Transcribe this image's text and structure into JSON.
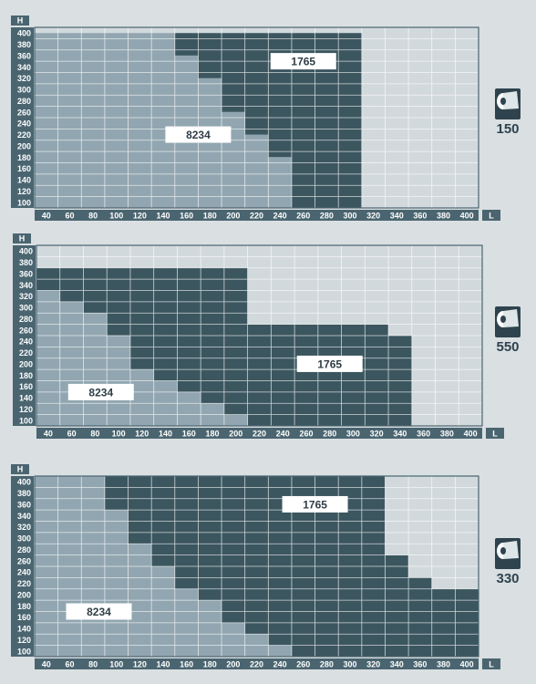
{
  "colors": {
    "outer_zone": "#d2d9dc",
    "light_zone": "#91a6b0",
    "dark_zone": "#3b565f",
    "grid_line": "#ffffff",
    "axis_bar": "#4a6570",
    "label_bg": "#ffffff",
    "label_text": "#2f3e46",
    "icon_fill": "#2e434d"
  },
  "chart_data": [
    {
      "type": "heatmap",
      "name": "150",
      "xlabel": "L",
      "ylabel": "H",
      "x_ticks": [
        40,
        60,
        80,
        100,
        120,
        140,
        160,
        180,
        200,
        220,
        240,
        260,
        280,
        300,
        320,
        340,
        360,
        380,
        400
      ],
      "y_ticks": [
        100,
        120,
        140,
        160,
        180,
        200,
        220,
        240,
        260,
        280,
        300,
        320,
        340,
        360,
        380,
        400
      ],
      "grid": true,
      "regions": [
        {
          "label": "8234",
          "boundary": [
            [
              30,
              400
            ],
            [
              150,
              400
            ],
            [
              150,
              360
            ],
            [
              170,
              360
            ],
            [
              170,
              320
            ],
            [
              190,
              320
            ],
            [
              190,
              260
            ],
            [
              210,
              260
            ],
            [
              210,
              220
            ],
            [
              230,
              220
            ],
            [
              230,
              180
            ],
            [
              250,
              180
            ],
            [
              250,
              90
            ],
            [
              30,
              90
            ]
          ]
        },
        {
          "label": "1765",
          "boundary": [
            [
              150,
              400
            ],
            [
              310,
              400
            ],
            [
              310,
              90
            ],
            [
              250,
              90
            ],
            [
              250,
              180
            ],
            [
              230,
              180
            ],
            [
              230,
              220
            ],
            [
              210,
              220
            ],
            [
              210,
              260
            ],
            [
              190,
              260
            ],
            [
              190,
              320
            ],
            [
              170,
              320
            ],
            [
              170,
              360
            ],
            [
              150,
              360
            ]
          ]
        }
      ],
      "icon": "paper-roll-icon"
    },
    {
      "type": "heatmap",
      "name": "550",
      "xlabel": "L",
      "ylabel": "H",
      "x_ticks": [
        40,
        60,
        80,
        100,
        120,
        140,
        160,
        180,
        200,
        220,
        240,
        260,
        280,
        300,
        320,
        340,
        360,
        380,
        400
      ],
      "y_ticks": [
        100,
        120,
        140,
        160,
        180,
        200,
        220,
        240,
        260,
        280,
        300,
        320,
        340,
        360,
        380,
        400
      ],
      "grid": true,
      "regions": [
        {
          "label": "8234",
          "boundary": [
            [
              30,
              330
            ],
            [
              50,
              330
            ],
            [
              50,
              310
            ],
            [
              70,
              310
            ],
            [
              70,
              290
            ],
            [
              90,
              290
            ],
            [
              90,
              250
            ],
            [
              110,
              250
            ],
            [
              110,
              190
            ],
            [
              130,
              190
            ],
            [
              130,
              170
            ],
            [
              150,
              170
            ],
            [
              150,
              150
            ],
            [
              170,
              150
            ],
            [
              170,
              130
            ],
            [
              190,
              130
            ],
            [
              190,
              110
            ],
            [
              210,
              110
            ],
            [
              210,
              90
            ],
            [
              30,
              90
            ]
          ]
        },
        {
          "label": "1765",
          "boundary": [
            [
              30,
              370
            ],
            [
              210,
              370
            ],
            [
              210,
              270
            ],
            [
              330,
              270
            ],
            [
              330,
              250
            ],
            [
              350,
              250
            ],
            [
              350,
              90
            ],
            [
              210,
              90
            ],
            [
              210,
              110
            ],
            [
              190,
              110
            ],
            [
              190,
              130
            ],
            [
              170,
              130
            ],
            [
              170,
              150
            ],
            [
              150,
              150
            ],
            [
              150,
              170
            ],
            [
              130,
              170
            ],
            [
              130,
              190
            ],
            [
              110,
              190
            ],
            [
              110,
              250
            ],
            [
              90,
              250
            ],
            [
              90,
              290
            ],
            [
              70,
              290
            ],
            [
              70,
              310
            ],
            [
              50,
              310
            ],
            [
              50,
              330
            ],
            [
              30,
              330
            ]
          ]
        }
      ],
      "icon": "paper-roll-icon"
    },
    {
      "type": "heatmap",
      "name": "330",
      "xlabel": "L",
      "ylabel": "H",
      "x_ticks": [
        40,
        60,
        80,
        100,
        120,
        140,
        160,
        180,
        200,
        220,
        240,
        260,
        280,
        300,
        320,
        340,
        360,
        380,
        400
      ],
      "y_ticks": [
        100,
        120,
        140,
        160,
        180,
        200,
        220,
        240,
        260,
        280,
        300,
        320,
        340,
        360,
        380,
        400
      ],
      "grid": true,
      "regions": [
        {
          "label": "8234",
          "boundary": [
            [
              30,
              410
            ],
            [
              90,
              410
            ],
            [
              90,
              350
            ],
            [
              110,
              350
            ],
            [
              110,
              290
            ],
            [
              130,
              290
            ],
            [
              130,
              250
            ],
            [
              150,
              250
            ],
            [
              150,
              210
            ],
            [
              170,
              210
            ],
            [
              170,
              190
            ],
            [
              190,
              190
            ],
            [
              190,
              150
            ],
            [
              210,
              150
            ],
            [
              210,
              130
            ],
            [
              230,
              130
            ],
            [
              230,
              110
            ],
            [
              250,
              110
            ],
            [
              250,
              90
            ],
            [
              30,
              90
            ]
          ]
        },
        {
          "label": "1765",
          "boundary": [
            [
              90,
              410
            ],
            [
              330,
              410
            ],
            [
              330,
              270
            ],
            [
              350,
              270
            ],
            [
              350,
              230
            ],
            [
              370,
              230
            ],
            [
              370,
              210
            ],
            [
              410,
              210
            ],
            [
              410,
              90
            ],
            [
              250,
              90
            ],
            [
              250,
              110
            ],
            [
              230,
              110
            ],
            [
              230,
              130
            ],
            [
              210,
              130
            ],
            [
              210,
              150
            ],
            [
              190,
              150
            ],
            [
              190,
              190
            ],
            [
              170,
              190
            ],
            [
              170,
              210
            ],
            [
              150,
              210
            ],
            [
              150,
              250
            ],
            [
              130,
              250
            ],
            [
              130,
              290
            ],
            [
              110,
              290
            ],
            [
              110,
              350
            ],
            [
              90,
              350
            ]
          ]
        }
      ],
      "icon": "paper-roll-icon"
    }
  ]
}
